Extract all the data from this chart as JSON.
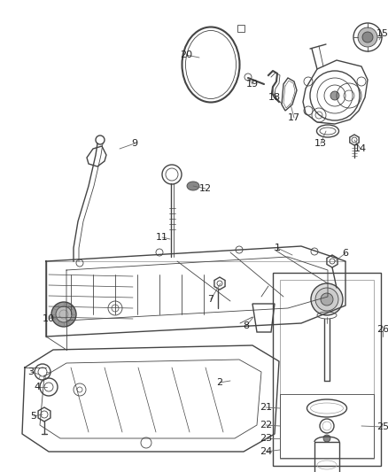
{
  "bg_color": "#ffffff",
  "fig_width": 4.38,
  "fig_height": 5.33,
  "dpi": 100,
  "line_color": "#444444",
  "label_color": "#222222",
  "gray_light": "#aaaaaa",
  "gray_med": "#888888",
  "gray_dark": "#555555"
}
